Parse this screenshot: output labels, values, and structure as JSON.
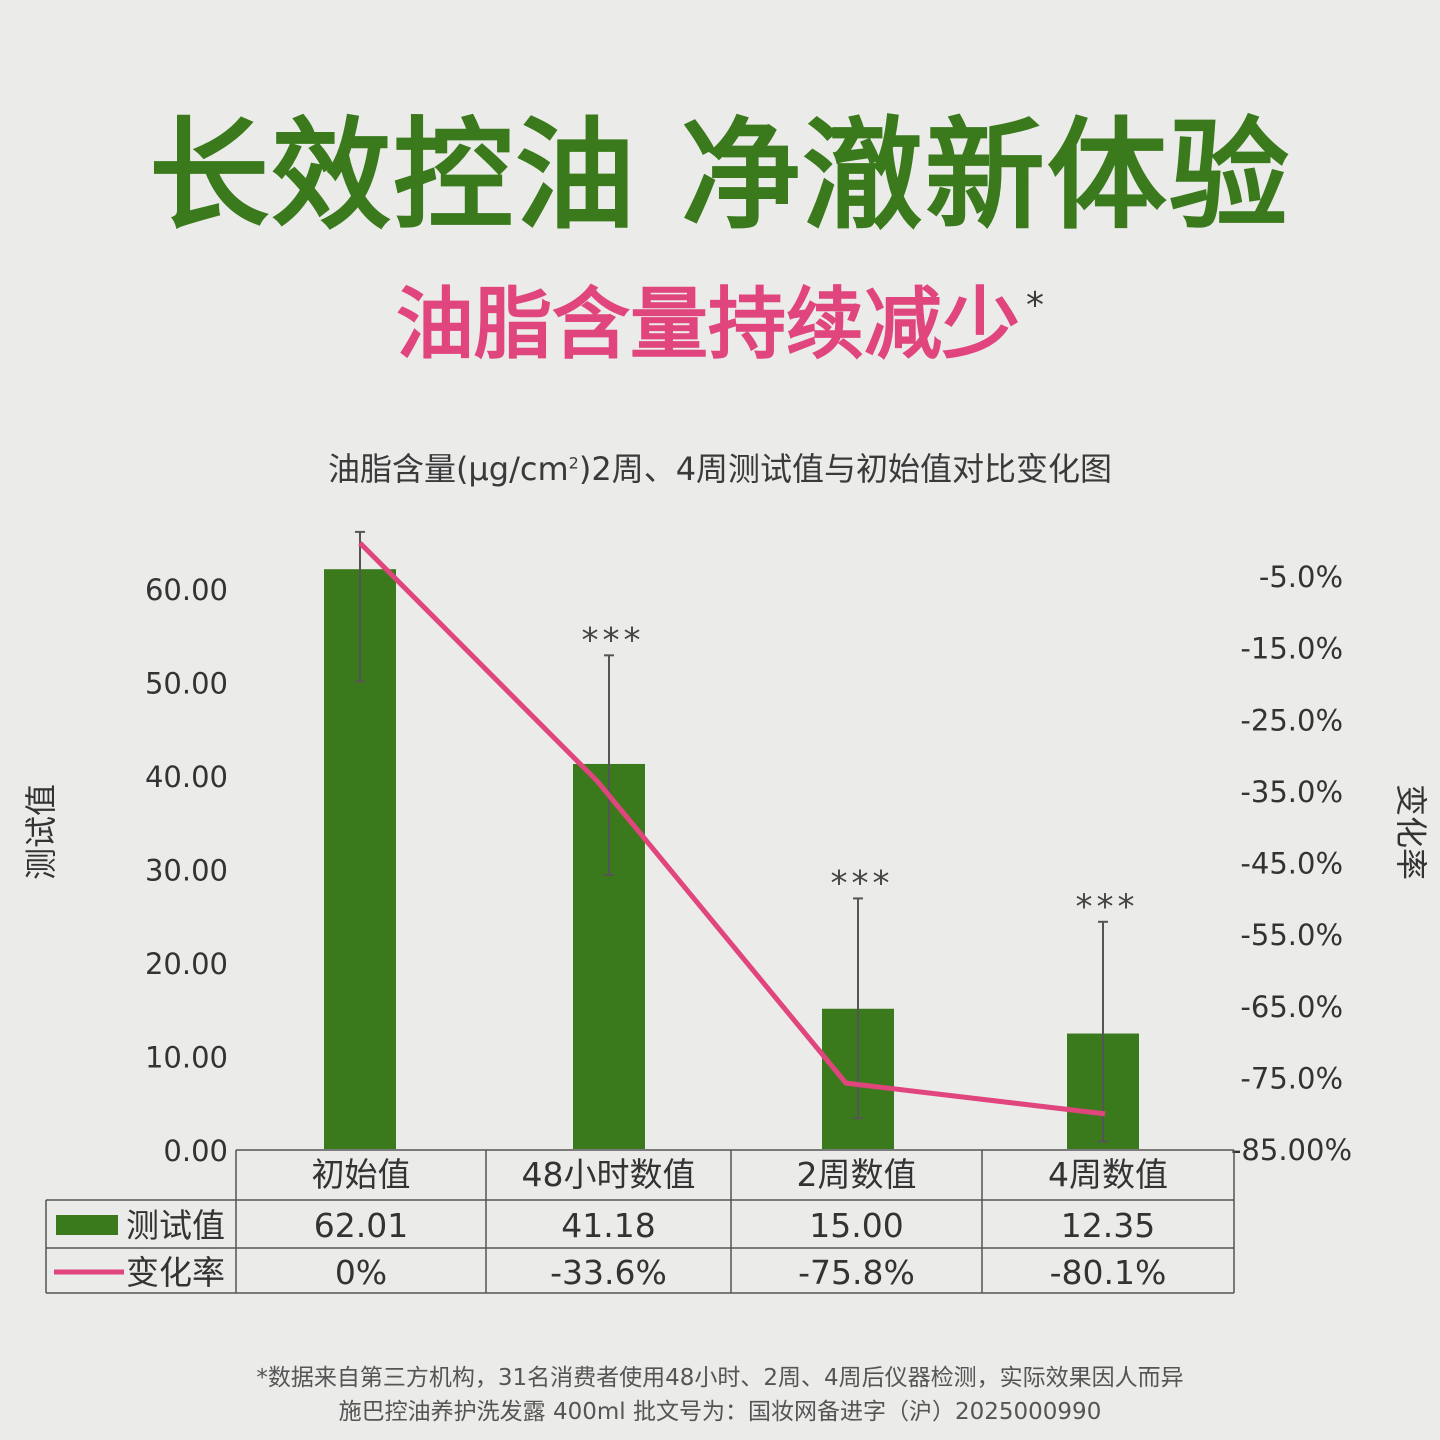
{
  "headline": "长效控油 净澈新体验",
  "subhead": "油脂含量持续减少",
  "subhead_mark": "*",
  "chart_title_main": "油脂含量(μg/cm",
  "chart_title_sup": "2",
  "chart_title_tail": ")2周、4周测试值与初始值对比变化图",
  "colors": {
    "bar": "#3a7a1c",
    "line": "#e0457d",
    "headline": "#3a7a1c",
    "subhead": "#e0457d"
  },
  "chart_data": {
    "type": "bar",
    "categories": [
      "初始值",
      "48小时数值",
      "2周数值",
      "4周数值"
    ],
    "series": [
      {
        "name": "测试值",
        "type": "bar",
        "axis": "left",
        "values": [
          62.01,
          41.18,
          15.0,
          12.35
        ],
        "error_low": [
          50.0,
          29.3,
          3.3,
          0.8
        ],
        "error_high": [
          66.0,
          52.8,
          26.8,
          24.3
        ]
      },
      {
        "name": "变化率",
        "type": "line",
        "axis": "right",
        "values": [
          0,
          -33.6,
          -75.8,
          -80.1
        ]
      }
    ],
    "significance": [
      "",
      "***",
      "***",
      "***"
    ],
    "left_axis": {
      "label": "测试值",
      "ticks": [
        "0.00",
        "10.00",
        "20.00",
        "30.00",
        "40.00",
        "50.00",
        "60.00"
      ],
      "range": [
        0,
        60
      ]
    },
    "right_axis": {
      "label": "变化率",
      "ticks": [
        "-5.0%",
        "-15.0%",
        "-25.0%",
        "-35.0%",
        "-45.0%",
        "-55.0%",
        "-65.0%",
        "-75.0%",
        "-85.00%"
      ],
      "range": [
        -85,
        -5
      ]
    },
    "table": {
      "rows": [
        {
          "label": "测试值",
          "cells": [
            "62.01",
            "41.18",
            "15.00",
            "12.35"
          ]
        },
        {
          "label": "变化率",
          "cells": [
            "0%",
            "-33.6%",
            "-75.8%",
            "-80.1%"
          ]
        }
      ]
    }
  },
  "footnote_1": "*数据来自第三方机构，31名消费者使用48小时、2周、4周后仪器检测，实际效果因人而异",
  "footnote_2": "施巴控油养护洗发露 400ml 批文号为：国妆网备进字（沪）2025000990"
}
